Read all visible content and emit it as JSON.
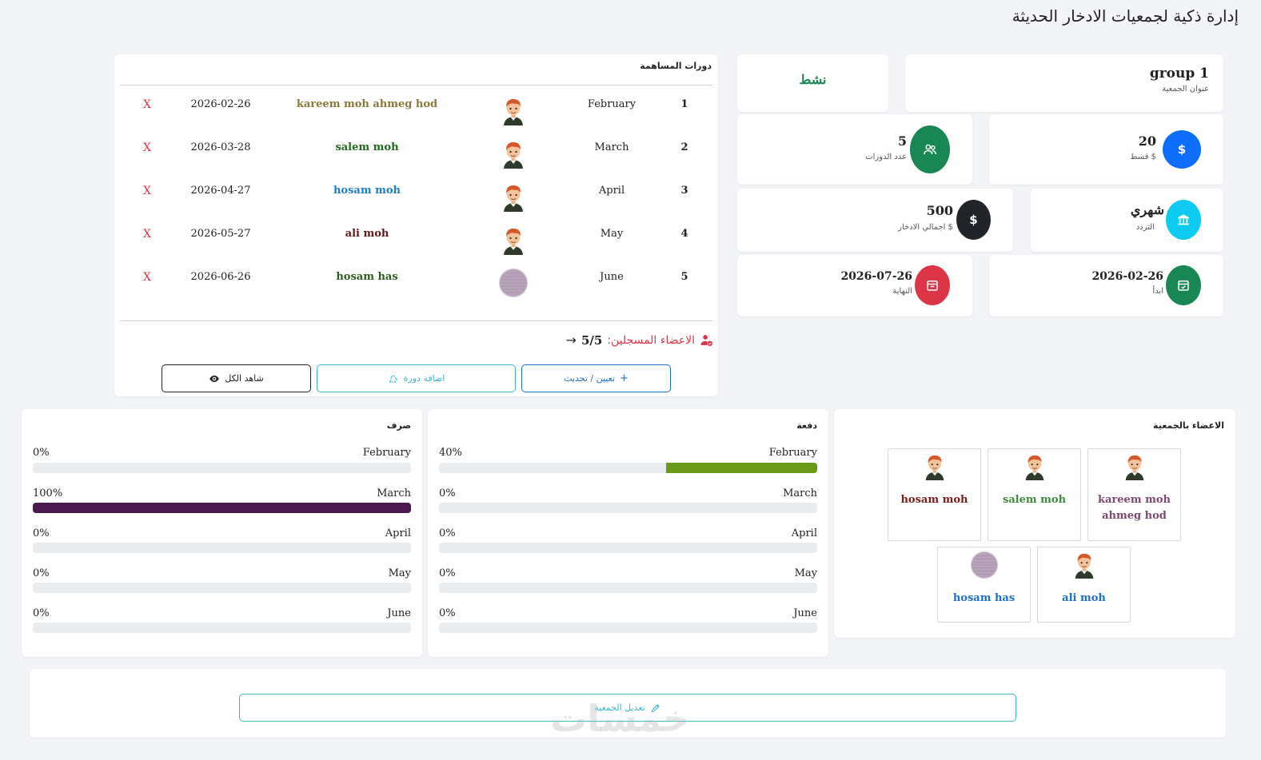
{
  "page": {
    "title": "إدارة ذكية لجمعيات الادخار الحديثة"
  },
  "group": {
    "name": "group 1",
    "name_label": "عنوان الجمعية",
    "status": "نشط",
    "status_color": "#198754"
  },
  "stats": {
    "installment": {
      "value": "20",
      "label": "$ قسط",
      "color": "#0d6efd",
      "icon": "dollar-icon"
    },
    "cycles": {
      "value": "5",
      "label": "عدد الدورات",
      "color": "#198754",
      "icon": "users-icon"
    },
    "frequency": {
      "value": "شهري",
      "label": "التردد",
      "color": "#0dcaf0",
      "icon": "bank-icon"
    },
    "total": {
      "value": "500",
      "label": "$ اجمالي الادخار",
      "color": "#212529",
      "icon": "dollar-icon"
    },
    "start": {
      "value": "2026-02-26",
      "label": "ابدأ",
      "color": "#198754",
      "icon": "calendar-check-icon"
    },
    "end": {
      "value": "2026-07-26",
      "label": "النهاية",
      "color": "#dc3545",
      "icon": "calendar-x-icon"
    }
  },
  "cycles_table": {
    "title": "دورات المساهمة",
    "rows": [
      {
        "num": "1",
        "month": "February",
        "name": "kareem moh ahmeg hod",
        "name_color": "#8a7a3a",
        "date": "2026-02-26",
        "remove": "X",
        "avatar": "boy"
      },
      {
        "num": "2",
        "month": "March",
        "name": "salem moh",
        "name_color": "#1e6b1e",
        "date": "2026-03-28",
        "remove": "X",
        "avatar": "boy"
      },
      {
        "num": "3",
        "month": "April",
        "name": "hosam moh",
        "name_color": "#1f7fc9",
        "date": "2026-04-27",
        "remove": "X",
        "avatar": "boy"
      },
      {
        "num": "4",
        "month": "May",
        "name": "ali moh",
        "name_color": "#5a1a1a",
        "date": "2026-05-27",
        "remove": "X",
        "avatar": "boy"
      },
      {
        "num": "5",
        "month": "June",
        "name": "hosam has",
        "name_color": "#2e5d1e",
        "date": "2026-06-26",
        "remove": "X",
        "avatar": "photo"
      }
    ],
    "registered_label": "الاعضاء المسجلين:",
    "registered_count": "5/5",
    "buttons": {
      "assign": "تعيين / تحديث",
      "add_cycle": "اضافة دورة",
      "view_all": "شاهد الكل"
    }
  },
  "members": {
    "title": "الاعضاء بالجمعية",
    "items": [
      {
        "name": "kareem moh ahmeg hod",
        "color": "#7b4b6e",
        "avatar": "boy"
      },
      {
        "name": "salem moh",
        "color": "#3f8a3f",
        "avatar": "boy"
      },
      {
        "name": "hosam moh",
        "color": "#7a1d1d",
        "avatar": "boy"
      },
      {
        "name": "ali moh",
        "color": "#1f6fc9",
        "avatar": "boy"
      },
      {
        "name": "hosam has",
        "color": "#1f6fc9",
        "avatar": "photo"
      }
    ]
  },
  "payments": {
    "title": "دفعة",
    "color": "#6a9a1a",
    "rows": [
      {
        "month": "February",
        "pct": "40%",
        "value": 40
      },
      {
        "month": "March",
        "pct": "0%",
        "value": 0
      },
      {
        "month": "April",
        "pct": "0%",
        "value": 0
      },
      {
        "month": "May",
        "pct": "0%",
        "value": 0
      },
      {
        "month": "June",
        "pct": "0%",
        "value": 0
      }
    ]
  },
  "disbursements": {
    "title": "صرف",
    "color": "#4a1a4f",
    "rows": [
      {
        "month": "February",
        "pct": "0%",
        "value": 0
      },
      {
        "month": "March",
        "pct": "100%",
        "value": 100
      },
      {
        "month": "April",
        "pct": "0%",
        "value": 0
      },
      {
        "month": "May",
        "pct": "0%",
        "value": 0
      },
      {
        "month": "June",
        "pct": "0%",
        "value": 0
      }
    ]
  },
  "edit_button": {
    "label": "تعديل الجمعية"
  },
  "watermark": "خمسات"
}
